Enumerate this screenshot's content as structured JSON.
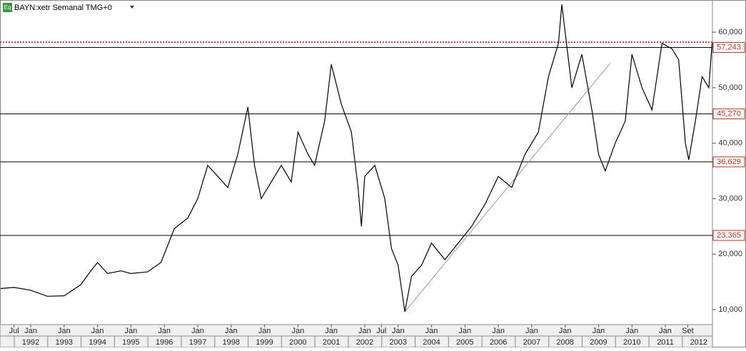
{
  "header": {
    "badge": "Eq",
    "title": "BAYN:xetr Semanal TMG+0"
  },
  "chart_data": {
    "type": "line",
    "title": "BAYN:xetr Semanal TMG+0",
    "xlim": [
      1991.08,
      2012.41
    ],
    "ylim": [
      7300,
      65800
    ],
    "yticks": [
      {
        "value": 10000,
        "label": "10,000"
      },
      {
        "value": 20000,
        "label": "20,000"
      },
      {
        "value": 30000,
        "label": "30,000"
      },
      {
        "value": 40000,
        "label": "40,000"
      },
      {
        "value": 50000,
        "label": "50,000"
      },
      {
        "value": 60000,
        "label": "60,000"
      }
    ],
    "xticks": [
      {
        "value": 1991.5,
        "label": "Jul"
      },
      {
        "value": 1992,
        "label": "Jan"
      },
      {
        "value": 1993,
        "label": "Jan"
      },
      {
        "value": 1994,
        "label": "Jan"
      },
      {
        "value": 1995,
        "label": "Jan"
      },
      {
        "value": 1996,
        "label": "Jan"
      },
      {
        "value": 1997,
        "label": "Jan"
      },
      {
        "value": 1998,
        "label": "Jan"
      },
      {
        "value": 1999,
        "label": "Jan"
      },
      {
        "value": 2000,
        "label": "Jan"
      },
      {
        "value": 2001,
        "label": "Jan"
      },
      {
        "value": 2002,
        "label": "Jan"
      },
      {
        "value": 2002.5,
        "label": "Jul"
      },
      {
        "value": 2003,
        "label": "Jan"
      },
      {
        "value": 2004,
        "label": "Jan"
      },
      {
        "value": 2005,
        "label": "Jan"
      },
      {
        "value": 2006,
        "label": "Jan"
      },
      {
        "value": 2007,
        "label": "Jan"
      },
      {
        "value": 2008,
        "label": "Jan"
      },
      {
        "value": 2009,
        "label": "Jan"
      },
      {
        "value": 2010,
        "label": "Jan"
      },
      {
        "value": 2011,
        "label": "Jan"
      },
      {
        "value": 2011.67,
        "label": "Set"
      }
    ],
    "year_ticks": [
      {
        "value": 1992,
        "label": "1992"
      },
      {
        "value": 1993,
        "label": "1993"
      },
      {
        "value": 1994,
        "label": "1994"
      },
      {
        "value": 1995,
        "label": "1995"
      },
      {
        "value": 1996,
        "label": "1996"
      },
      {
        "value": 1997,
        "label": "1997"
      },
      {
        "value": 1998,
        "label": "1998"
      },
      {
        "value": 1999,
        "label": "1999"
      },
      {
        "value": 2000,
        "label": "2000"
      },
      {
        "value": 2001,
        "label": "2001"
      },
      {
        "value": 2002,
        "label": "2002"
      },
      {
        "value": 2003,
        "label": "2003"
      },
      {
        "value": 2004,
        "label": "2004"
      },
      {
        "value": 2005,
        "label": "2005"
      },
      {
        "value": 2006,
        "label": "2006"
      },
      {
        "value": 2007,
        "label": "2007"
      },
      {
        "value": 2008,
        "label": "2008"
      },
      {
        "value": 2009,
        "label": "2009"
      },
      {
        "value": 2010,
        "label": "2010"
      },
      {
        "value": 2011,
        "label": "2011"
      },
      {
        "value": 2012,
        "label": "2012"
      }
    ],
    "series": [
      {
        "name": "BAYN",
        "color": "#000000",
        "x": [
          1991.1,
          1991.5,
          1992.0,
          1992.5,
          1993.0,
          1993.5,
          1993.8,
          1994.0,
          1994.3,
          1994.7,
          1995.0,
          1995.5,
          1995.9,
          1996.3,
          1996.7,
          1997.0,
          1997.3,
          1997.6,
          1997.9,
          1998.2,
          1998.5,
          1998.7,
          1998.9,
          1999.2,
          1999.5,
          1999.8,
          2000.0,
          2000.3,
          2000.5,
          2000.8,
          2001.0,
          2001.3,
          2001.6,
          2001.8,
          2001.9,
          2002.0,
          2002.3,
          2002.6,
          2002.8,
          2003.0,
          2003.2,
          2003.4,
          2003.7,
          2004.0,
          2004.4,
          2004.8,
          2005.2,
          2005.6,
          2006.0,
          2006.4,
          2006.8,
          2007.2,
          2007.5,
          2007.8,
          2007.9,
          2008.2,
          2008.5,
          2008.8,
          2009.0,
          2009.2,
          2009.5,
          2009.8,
          2010.0,
          2010.3,
          2010.6,
          2010.9,
          2011.2,
          2011.4,
          2011.6,
          2011.7,
          2011.9,
          2012.1,
          2012.3,
          2012.4
        ],
        "values": [
          13800,
          14000,
          13500,
          12400,
          12500,
          14500,
          17000,
          18500,
          16500,
          17000,
          16500,
          16800,
          18500,
          24600,
          26500,
          30000,
          36000,
          34000,
          32000,
          38000,
          46500,
          36000,
          30000,
          33000,
          36000,
          33000,
          42000,
          38000,
          36000,
          44000,
          54200,
          47000,
          42000,
          32000,
          25000,
          34000,
          36000,
          30000,
          21000,
          18000,
          9600,
          16000,
          18000,
          22000,
          19000,
          22000,
          25000,
          29000,
          34000,
          32000,
          38000,
          42000,
          52000,
          58000,
          65000,
          50000,
          56000,
          46000,
          38000,
          35000,
          40000,
          44000,
          56000,
          50000,
          46000,
          58000,
          57000,
          55000,
          40000,
          37000,
          44000,
          52000,
          50000,
          58000
        ]
      }
    ],
    "levels": [
      {
        "value": 57243,
        "label": "57,243"
      },
      {
        "value": 45270,
        "label": "45,270"
      },
      {
        "value": 36629,
        "label": "36,629"
      },
      {
        "value": 23365,
        "label": "23,365"
      }
    ],
    "last_price": 58200,
    "trendline": {
      "x": [
        2003.2,
        2009.35
      ],
      "values": [
        9600,
        54400
      ]
    }
  }
}
